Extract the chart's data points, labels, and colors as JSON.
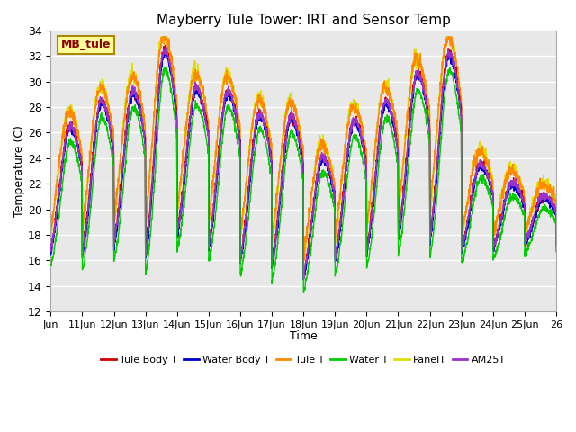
{
  "title": "Mayberry Tule Tower: IRT and Sensor Temp",
  "xlabel": "Time",
  "ylabel": "Temperature (C)",
  "site_label": "MB_tule",
  "ylim": [
    12,
    34
  ],
  "xlim_days": [
    0,
    16
  ],
  "x_tick_labels": [
    "Jun",
    "11Jun",
    "12Jun",
    "13Jun",
    "14Jun",
    "15Jun",
    "16Jun",
    "17Jun",
    "18Jun",
    "19Jun",
    "20Jun",
    "21Jun",
    "22Jun",
    "23Jun",
    "24Jun",
    "25Jun",
    "26"
  ],
  "x_tick_positions": [
    0,
    1,
    2,
    3,
    4,
    5,
    6,
    7,
    8,
    9,
    10,
    11,
    12,
    13,
    14,
    15,
    16
  ],
  "y_ticks": [
    12,
    14,
    16,
    18,
    20,
    22,
    24,
    26,
    28,
    30,
    32,
    34
  ],
  "lines": {
    "Tule Body T": {
      "color": "#cc0000",
      "lw": 1.0
    },
    "Water Body T": {
      "color": "#0000cc",
      "lw": 1.0
    },
    "Tule T": {
      "color": "#ff8800",
      "lw": 1.0
    },
    "Water T": {
      "color": "#00cc00",
      "lw": 1.0
    },
    "PanelT": {
      "color": "#dddd00",
      "lw": 1.0
    },
    "AM25T": {
      "color": "#9933cc",
      "lw": 1.0
    }
  },
  "plot_bg_color": "#e8e8e8",
  "site_label_bg": "#ffff99",
  "site_label_border": "#aa8800",
  "peak_temps": [
    26.5,
    28.5,
    29.3,
    32.5,
    29.5,
    29.3,
    27.5,
    27.3,
    24.0,
    27.0,
    28.5,
    30.7,
    32.3,
    23.5,
    22.0,
    21.0
  ],
  "min_temps": [
    15.0,
    14.3,
    15.0,
    13.5,
    16.0,
    14.9,
    14.0,
    13.5,
    13.0,
    14.0,
    14.5,
    15.5,
    15.0,
    15.5,
    16.0,
    16.5
  ]
}
